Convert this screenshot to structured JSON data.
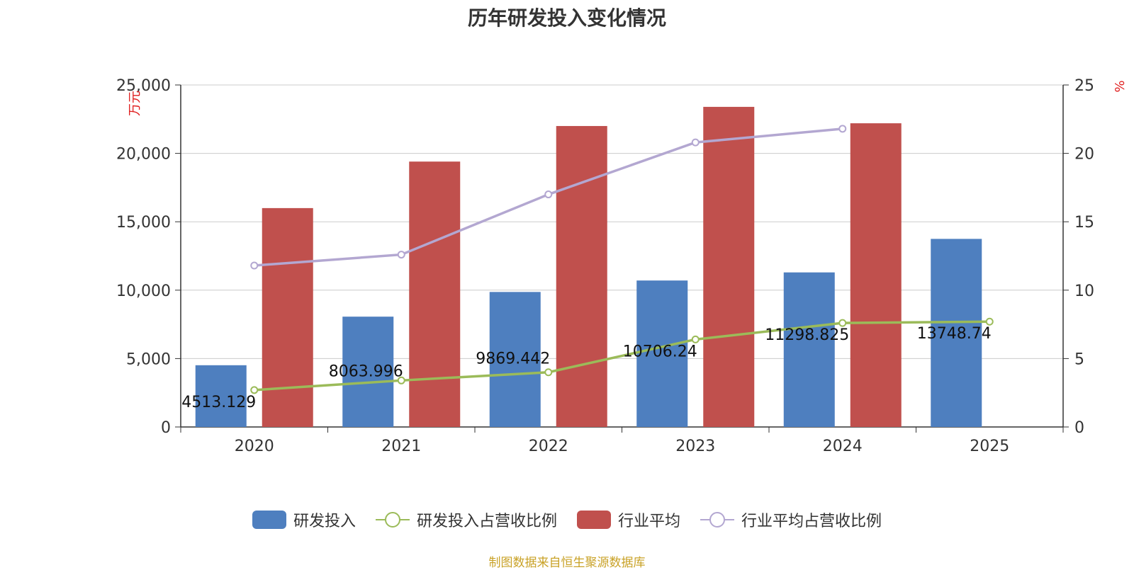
{
  "chart_data": {
    "type": "bar",
    "title": "历年研发投入变化情况",
    "categories": [
      "2020",
      "2021",
      "2022",
      "2023",
      "2024",
      "2025"
    ],
    "y_left": {
      "unit": "万元",
      "ticks": [
        "0",
        "5,000",
        "10,000",
        "15,000",
        "20,000",
        "25,000"
      ],
      "ylim": [
        0,
        25000
      ]
    },
    "y_right": {
      "unit": "%",
      "ticks": [
        "0",
        "5",
        "10",
        "15",
        "20",
        "25"
      ],
      "ylim": [
        0,
        25
      ]
    },
    "series": [
      {
        "name": "研发投入",
        "kind": "bar",
        "axis": "left",
        "color": "#4e7fbf",
        "values": [
          4513.129,
          8063.996,
          9869.442,
          10706.24,
          11298.825,
          13748.74
        ],
        "labels": [
          "4513.129",
          "8063.996",
          "9869.442",
          "10706.24",
          "11298.825",
          "13748.74"
        ]
      },
      {
        "name": "研发投入占营收比例",
        "kind": "line",
        "axis": "right",
        "color": "#9bbb59",
        "values": [
          2.7,
          3.4,
          4.0,
          6.4,
          7.6,
          7.7
        ]
      },
      {
        "name": "行业平均",
        "kind": "bar",
        "axis": "left",
        "color": "#c0504d",
        "values": [
          16000,
          19400,
          22000,
          23400,
          22200,
          null
        ]
      },
      {
        "name": "行业平均占营收比例",
        "kind": "line",
        "axis": "right",
        "color": "#b3a7d1",
        "values": [
          11.8,
          12.6,
          17.0,
          20.8,
          21.8,
          null
        ]
      }
    ],
    "grid": true,
    "legend_position": "bottom"
  },
  "source_note": "制图数据来自恒生聚源数据库"
}
